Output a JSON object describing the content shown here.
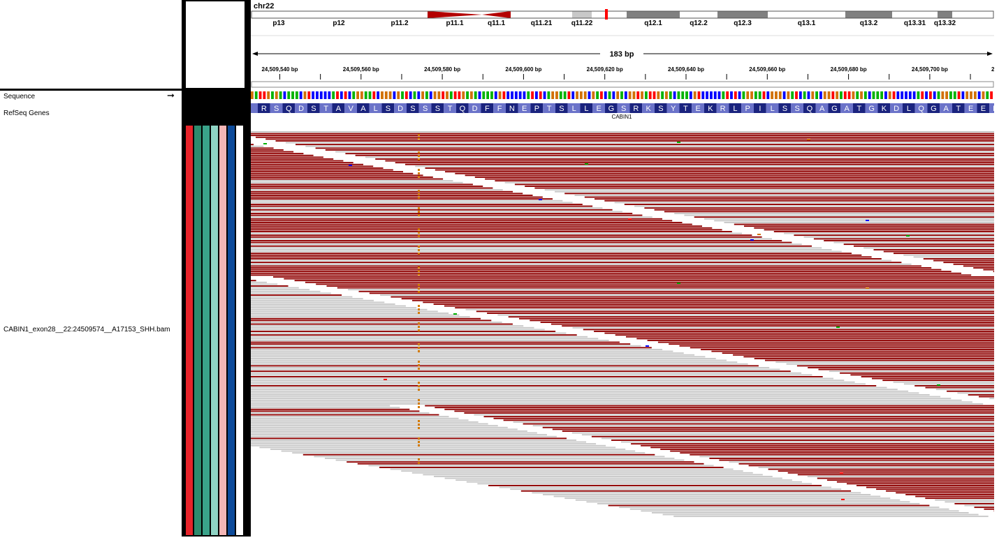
{
  "chromosome": {
    "name": "chr22"
  },
  "ideogram": {
    "bands": [
      {
        "name": "p13",
        "stain": "gneg"
      },
      {
        "name": "p12",
        "stain": "gneg"
      },
      {
        "name": "p11.2",
        "stain": "gneg"
      },
      {
        "name": "p11.1",
        "stain": "acen"
      },
      {
        "name": "q11.1",
        "stain": "acen"
      },
      {
        "name": "q11.21",
        "stain": "gneg"
      },
      {
        "name": "q11.22",
        "stain": "gpos25"
      },
      {
        "name": "",
        "stain": "gneg"
      },
      {
        "name": "q12.1",
        "stain": "gpos50"
      },
      {
        "name": "q12.2",
        "stain": "gneg"
      },
      {
        "name": "q12.3",
        "stain": "gpos50"
      },
      {
        "name": "q13.1",
        "stain": "gneg"
      },
      {
        "name": "q13.2",
        "stain": "gpos50"
      },
      {
        "name": "q13.31",
        "stain": "gneg"
      },
      {
        "name": "q13.32",
        "stain": "gpos50"
      },
      {
        "name": "",
        "stain": "gneg"
      }
    ],
    "current_region_color": "#ff0000"
  },
  "ruler": {
    "span_label": "183 bp",
    "ticks": [
      "24,509,540 bp",
      "24,509,560 bp",
      "24,509,580 bp",
      "24,509,600 bp",
      "24,509,620 bp",
      "24,509,640 bp",
      "24,509,660 bp",
      "24,509,680 bp",
      "24,509,700 bp"
    ]
  },
  "tracks": {
    "sequence_label": "Sequence",
    "sequence_strand_icon": "arrow-right-icon",
    "genes_label": "RefSeq Genes",
    "bam_label": "CABIN1_exon28__22:24509574__A17153_SHH.bam"
  },
  "amino_acids": [
    "R",
    "S",
    "Q",
    "D",
    "S",
    "T",
    "A",
    "V",
    "A",
    "L",
    "S",
    "D",
    "S",
    "S",
    "S",
    "T",
    "Q",
    "D",
    "F",
    "F",
    "N",
    "E",
    "P",
    "T",
    "S",
    "L",
    "L",
    "E",
    "G",
    "S",
    "R",
    "K",
    "S",
    "Y",
    "T",
    "E",
    "K",
    "R",
    "L",
    "P",
    "I",
    "L",
    "S",
    "S",
    "Q",
    "A",
    "G",
    "A",
    "T",
    "G",
    "K",
    "D",
    "L",
    "Q",
    "G",
    "A",
    "T",
    "E",
    "E",
    "R"
  ],
  "gene": {
    "name": "CABIN1"
  },
  "attribute_colors": [
    "#e8232a",
    "#2e8b6e",
    "#3aa38a",
    "#8fd3c4",
    "#f4b6b6",
    "#0c4a9a",
    "#ffffff"
  ],
  "colors": {
    "read_reverse": "#8f0000",
    "read_forward": "#c8c8c8",
    "base_A": "#00b300",
    "base_C": "#0000ff",
    "base_G": "#d17105",
    "base_T": "#ff0000",
    "insertion_column": "#d47a00",
    "aa_dark": "#1a237e",
    "aa_light": "#6b73c9"
  }
}
